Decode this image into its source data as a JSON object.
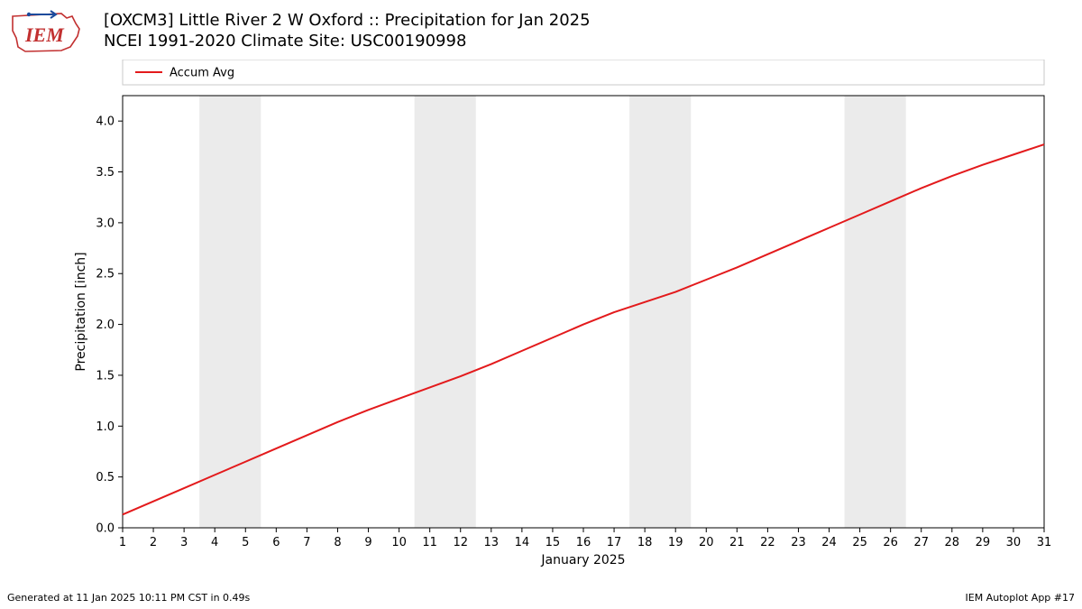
{
  "title_line1": "[OXCM3] Little River 2 W Oxford :: Precipitation for Jan 2025",
  "title_line2": "NCEI 1991-2020 Climate Site: USC00190998",
  "footer_left": "Generated at 11 Jan 2025 10:11 PM CST in 0.49s",
  "footer_right": "IEM Autoplot App #17",
  "logo": {
    "text": "IEM",
    "outline_color": "#c23030",
    "text_color": "#c23030",
    "accent_color": "#1a4a9c"
  },
  "chart": {
    "type": "line",
    "legend": {
      "label": "Accum Avg",
      "line_color": "#e31a1c",
      "border_color": "#c8c8c8",
      "bg": "#ffffff",
      "font_size": 13
    },
    "plot_bg": "#ffffff",
    "axis_color": "#000000",
    "tick_color": "#000000",
    "tick_font_size": 13,
    "label_font_size": 14,
    "line_width": 2,
    "weekend_band_color": "#ebebeb",
    "ylabel": "Precipitation [inch]",
    "xlabel": "January 2025",
    "xlim": [
      1,
      31
    ],
    "xticks": [
      1,
      2,
      3,
      4,
      5,
      6,
      7,
      8,
      9,
      10,
      11,
      12,
      13,
      14,
      15,
      16,
      17,
      18,
      19,
      20,
      21,
      22,
      23,
      24,
      25,
      26,
      27,
      28,
      29,
      30,
      31
    ],
    "ylim": [
      0,
      4.25
    ],
    "yticks": [
      0.0,
      0.5,
      1.0,
      1.5,
      2.0,
      2.5,
      3.0,
      3.5,
      4.0
    ],
    "ytick_labels": [
      "0.0",
      "0.5",
      "1.0",
      "1.5",
      "2.0",
      "2.5",
      "3.0",
      "3.5",
      "4.0"
    ],
    "weekend_bands": [
      [
        4,
        5
      ],
      [
        11,
        12
      ],
      [
        18,
        19
      ],
      [
        25,
        26
      ]
    ],
    "series": {
      "name": "Accum Avg",
      "color": "#e31a1c",
      "x": [
        1,
        2,
        3,
        4,
        5,
        6,
        7,
        8,
        9,
        10,
        11,
        12,
        13,
        14,
        15,
        16,
        17,
        18,
        19,
        20,
        21,
        22,
        23,
        24,
        25,
        26,
        27,
        28,
        29,
        30,
        31
      ],
      "y": [
        0.13,
        0.26,
        0.39,
        0.52,
        0.65,
        0.78,
        0.91,
        1.04,
        1.16,
        1.27,
        1.38,
        1.49,
        1.61,
        1.74,
        1.87,
        2.0,
        2.12,
        2.22,
        2.32,
        2.44,
        2.56,
        2.69,
        2.82,
        2.95,
        3.08,
        3.21,
        3.34,
        3.46,
        3.57,
        3.67,
        3.77
      ]
    }
  }
}
